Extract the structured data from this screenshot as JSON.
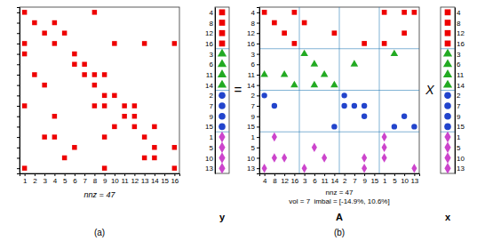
{
  "chart_data": [
    {
      "type": "scatter",
      "xlabel": "nnz = 47",
      "annotations": [
        "(a)"
      ],
      "xlim": [
        0.5,
        16.5
      ],
      "ylim": [
        16.5,
        0.5
      ],
      "xticks": [
        1,
        2,
        3,
        4,
        5,
        6,
        7,
        8,
        9,
        10,
        11,
        12,
        13,
        14,
        15,
        16
      ],
      "yticks": [
        1,
        2,
        3,
        4,
        5,
        6,
        7,
        8,
        9,
        10,
        11,
        12,
        13,
        14,
        15,
        16
      ],
      "tick_labels": "x",
      "series": [
        {
          "color": "#ee0000",
          "marker": "square",
          "x": [
            1,
            8,
            2,
            4,
            3,
            5,
            1,
            4,
            10,
            13,
            16,
            1,
            6,
            6,
            7,
            2,
            7,
            8,
            9,
            3,
            8,
            9,
            10,
            1,
            8,
            9,
            11,
            12,
            4,
            11,
            12,
            10,
            12,
            14,
            3,
            4,
            9,
            13,
            6,
            14,
            16,
            5,
            13,
            14,
            1,
            9,
            16
          ],
          "values": [
            1,
            1,
            2,
            2,
            3,
            3,
            4,
            4,
            4,
            4,
            4,
            5,
            5,
            6,
            6,
            7,
            7,
            7,
            7,
            8,
            8,
            9,
            9,
            10,
            10,
            10,
            10,
            10,
            11,
            11,
            11,
            12,
            12,
            12,
            13,
            13,
            13,
            13,
            14,
            14,
            14,
            15,
            15,
            15,
            16,
            16,
            16
          ]
        }
      ]
    },
    {
      "type": "scatter",
      "xlabel": "y",
      "yticks": [
        4,
        8,
        12,
        16,
        3,
        6,
        11,
        14,
        2,
        7,
        9,
        15,
        1,
        5,
        10,
        13
      ],
      "tick_labels": "y",
      "series": [
        {
          "color": "#ee0000",
          "marker": "square",
          "values": [
            4,
            8,
            12,
            16
          ]
        },
        {
          "color": "#22aa22",
          "marker": "triangle",
          "values": [
            3,
            6,
            11,
            14
          ]
        },
        {
          "color": "#2244cc",
          "marker": "circle",
          "values": [
            2,
            7,
            9,
            15
          ]
        },
        {
          "color": "#cc44cc",
          "marker": "diamond",
          "values": [
            1,
            5,
            10,
            13
          ]
        }
      ]
    },
    {
      "type": "scatter",
      "xlabel": "nnz = 47\nvol = 7  imbal = [-14.9%, 10.6%]",
      "annotations": [
        "=",
        "X",
        "A",
        "(b)"
      ],
      "xticks": [
        4,
        8,
        12,
        16,
        3,
        6,
        11,
        14,
        2,
        7,
        9,
        15,
        1,
        5,
        10,
        13
      ],
      "yticks": [
        4,
        8,
        12,
        16,
        3,
        6,
        11,
        14,
        2,
        7,
        9,
        15,
        1,
        5,
        10,
        13
      ],
      "series": [
        {
          "color": "#ee0000",
          "marker": "square",
          "x": [
            1,
            4,
            10,
            13,
            16,
            3,
            8,
            10,
            12,
            14,
            1,
            9,
            16
          ],
          "values": [
            4,
            4,
            4,
            4,
            4,
            8,
            8,
            12,
            12,
            12,
            16,
            16,
            16
          ]
        },
        {
          "color": "#22aa22",
          "marker": "triangle",
          "x": [
            3,
            5,
            6,
            7,
            4,
            11,
            12,
            6,
            14,
            16
          ],
          "values": [
            3,
            3,
            6,
            6,
            11,
            11,
            11,
            14,
            14,
            14
          ]
        },
        {
          "color": "#2244cc",
          "marker": "circle",
          "x": [
            2,
            4,
            2,
            7,
            8,
            9,
            9,
            10,
            5,
            13,
            14
          ],
          "values": [
            2,
            2,
            7,
            7,
            7,
            7,
            9,
            9,
            15,
            15,
            15
          ]
        },
        {
          "color": "#cc44cc",
          "marker": "diamond",
          "x": [
            1,
            8,
            1,
            6,
            1,
            8,
            9,
            11,
            12,
            3,
            4,
            9,
            13
          ],
          "values": [
            1,
            1,
            5,
            5,
            10,
            10,
            10,
            10,
            10,
            13,
            13,
            13,
            13
          ]
        }
      ]
    },
    {
      "type": "scatter",
      "xlabel": "x",
      "yticks": [
        4,
        8,
        12,
        16,
        3,
        6,
        11,
        14,
        2,
        7,
        9,
        15,
        1,
        5,
        10,
        13
      ],
      "tick_labels": "y",
      "series": [
        {
          "color": "#ee0000",
          "marker": "square",
          "values": [
            4,
            8,
            12,
            16
          ]
        },
        {
          "color": "#22aa22",
          "marker": "triangle",
          "values": [
            3,
            6,
            11,
            14
          ]
        },
        {
          "color": "#2244cc",
          "marker": "circle",
          "values": [
            2,
            7,
            9,
            15
          ]
        },
        {
          "color": "#cc44cc",
          "marker": "diamond",
          "values": [
            1,
            5,
            10,
            13
          ]
        }
      ]
    }
  ]
}
